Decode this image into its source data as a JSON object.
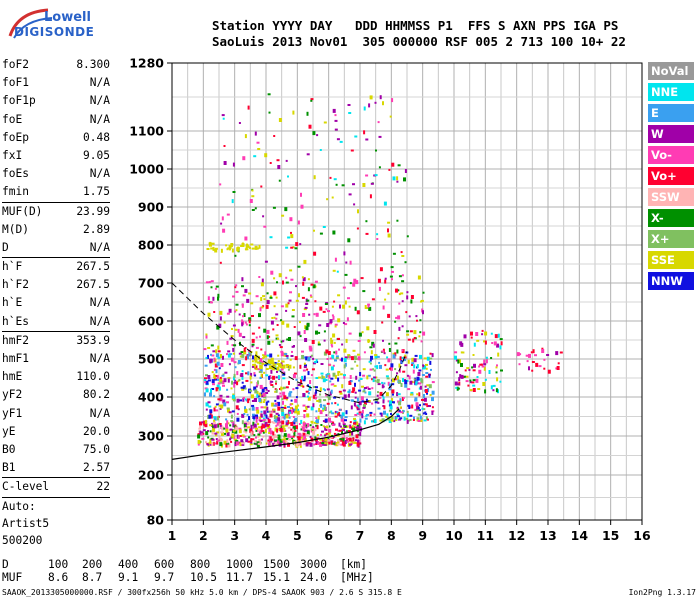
{
  "header": {
    "line1": "Station YYYY DAY   DDD HHMMSS P1  FFS S AXN PPS IGA PS",
    "line2": "SaoLuis 2013 Nov01  305 000000 RSF 005 2 713 100 10+ 22"
  },
  "logo": {
    "line1": "Lowell",
    "line2": "DIGISONDE"
  },
  "params": [
    {
      "name": "foF2",
      "value": "8.300"
    },
    {
      "name": "foF1",
      "value": "N/A"
    },
    {
      "name": "foF1p",
      "value": "N/A"
    },
    {
      "name": "foE",
      "value": "N/A"
    },
    {
      "name": "foEp",
      "value": "0.48"
    },
    {
      "name": "fxI",
      "value": "9.05"
    },
    {
      "name": "foEs",
      "value": "N/A"
    },
    {
      "name": "fmin",
      "value": "1.75"
    }
  ],
  "params2": [
    {
      "name": "MUF(D)",
      "value": "23.99"
    },
    {
      "name": "M(D)",
      "value": "2.89"
    },
    {
      "name": "D",
      "value": "N/A"
    }
  ],
  "params3": [
    {
      "name": "h`F",
      "value": "267.5"
    },
    {
      "name": "h`F2",
      "value": "267.5"
    },
    {
      "name": "h`E",
      "value": "N/A"
    },
    {
      "name": "h`Es",
      "value": "N/A"
    }
  ],
  "params4": [
    {
      "name": "hmF2",
      "value": "353.9"
    },
    {
      "name": "hmF1",
      "value": "N/A"
    },
    {
      "name": "hmE",
      "value": "110.0"
    },
    {
      "name": "yF2",
      "value": "80.2"
    },
    {
      "name": "yF1",
      "value": "N/A"
    },
    {
      "name": "yE",
      "value": "20.0"
    },
    {
      "name": "B0",
      "value": "75.0"
    },
    {
      "name": "B1",
      "value": "2.57"
    }
  ],
  "params5": [
    {
      "name": "C-level",
      "value": "22"
    }
  ],
  "auto": [
    "Auto:",
    "Artist5",
    "500200"
  ],
  "legend": [
    {
      "label": "NoVal",
      "color": "#999999",
      "text": "#ffffff"
    },
    {
      "label": "NNE",
      "color": "#00e5ee",
      "text": "#ffffff"
    },
    {
      "label": "E",
      "color": "#3aa0f0",
      "text": "#ffffff"
    },
    {
      "label": "W",
      "color": "#a000a8",
      "text": "#ffffff"
    },
    {
      "label": "Vo-",
      "color": "#ff3cb4",
      "text": "#ffffff"
    },
    {
      "label": "Vo+",
      "color": "#ff0030",
      "text": "#ffffff"
    },
    {
      "label": "SSW",
      "color": "#ffb4b4",
      "text": "#ffffff"
    },
    {
      "label": "X-",
      "color": "#009000",
      "text": "#ffffff"
    },
    {
      "label": "X+",
      "color": "#80c060",
      "text": "#ffffff"
    },
    {
      "label": "SSE",
      "color": "#d8d800",
      "text": "#ffffff"
    },
    {
      "label": "NNW",
      "color": "#1010e0",
      "text": "#ffffff"
    }
  ],
  "muf_table": {
    "d_label": "D",
    "d_values": [
      "100",
      "200",
      "400",
      "600",
      "800",
      "1000",
      "1500",
      "3000"
    ],
    "d_unit": "[km]",
    "muf_label": "MUF",
    "muf_values": [
      "8.6",
      "8.7",
      "9.1",
      "9.7",
      "10.5",
      "11.7",
      "15.1",
      "24.0"
    ],
    "muf_unit": "[MHz]"
  },
  "footer": {
    "left": "SAAOK_2013305000000.RSF / 300fx256h 50 kHz 5.0 km / DPS-4 SAAOK 903 / 2.6 S 315.8 E",
    "right": "Ion2Png 1.3.17"
  },
  "chart_data": {
    "type": "scatter",
    "xlabel": "",
    "ylabel": "",
    "x_ticks": [
      1,
      2,
      3,
      4,
      5,
      6,
      7,
      8,
      9,
      10,
      11,
      12,
      13,
      14,
      15,
      16
    ],
    "xlim": [
      1,
      16
    ],
    "y_ticks": [
      80,
      200,
      300,
      400,
      500,
      600,
      700,
      800,
      900,
      1000,
      1100,
      1280
    ],
    "y_tick_values": [
      80,
      200,
      300,
      400,
      500,
      600,
      700,
      800,
      900,
      1000,
      1100,
      1280
    ],
    "ylim": [
      80,
      1280
    ],
    "y_scale": "nonlinear (ionogram virtual height)",
    "grid": true,
    "clusters": [
      {
        "name": "F-trace",
        "x_range": [
          1.8,
          7.0
        ],
        "y_range": [
          280,
          340
        ],
        "colors": [
          "#ff0030",
          "#ff3cb4",
          "#009000",
          "#d8d800",
          "#a000a8",
          "#ffb4b4"
        ],
        "count": 520
      },
      {
        "name": "spread-F",
        "x_range": [
          2.0,
          9.3
        ],
        "y_range": [
          340,
          520
        ],
        "colors": [
          "#a000a8",
          "#ff3cb4",
          "#00e5ee",
          "#3aa0f0",
          "#d8d800",
          "#ff0030",
          "#80c060",
          "#1010e0"
        ],
        "count": 900
      },
      {
        "name": "high-echoes",
        "x_range": [
          2.0,
          9.0
        ],
        "y_range": [
          520,
          720
        ],
        "colors": [
          "#a000a8",
          "#ff0030",
          "#d8d800",
          "#ff3cb4",
          "#009000"
        ],
        "count": 330
      },
      {
        "name": "sparse-high",
        "x_range": [
          2.5,
          8.5
        ],
        "y_range": [
          720,
          1200
        ],
        "colors": [
          "#a000a8",
          "#ff3cb4",
          "#d8d800",
          "#00e5ee",
          "#ff0030",
          "#009000"
        ],
        "count": 160
      },
      {
        "name": "band-800",
        "x_range": [
          2.0,
          3.8
        ],
        "y_range": [
          790,
          810
        ],
        "colors": [
          "#d8d800"
        ],
        "count": 40
      },
      {
        "name": "band-500",
        "x_range": [
          3.5,
          4.8
        ],
        "y_range": [
          480,
          510
        ],
        "colors": [
          "#d8d800"
        ],
        "count": 40
      },
      {
        "name": "right-echoes",
        "x_range": [
          10.0,
          11.5
        ],
        "y_range": [
          420,
          580
        ],
        "colors": [
          "#ff0030",
          "#ff3cb4",
          "#00e5ee",
          "#a000a8",
          "#d8d800",
          "#009000"
        ],
        "count": 90
      },
      {
        "name": "far-right",
        "x_range": [
          12.0,
          13.5
        ],
        "y_range": [
          470,
          530
        ],
        "colors": [
          "#ff3cb4",
          "#ff0030",
          "#a000a8"
        ],
        "count": 25
      }
    ],
    "solid_profile": [
      [
        1,
        240
      ],
      [
        2,
        252
      ],
      [
        3,
        262
      ],
      [
        4,
        272
      ],
      [
        5,
        283
      ],
      [
        6,
        297
      ],
      [
        7,
        316
      ],
      [
        7.6,
        330
      ],
      [
        8.0,
        350
      ],
      [
        8.25,
        370
      ]
    ],
    "dashed_profile": [
      [
        1,
        700
      ],
      [
        2,
        620
      ],
      [
        3,
        550
      ],
      [
        4,
        490
      ],
      [
        5,
        440
      ],
      [
        6,
        405
      ],
      [
        7,
        385
      ],
      [
        7.6,
        395
      ],
      [
        8.0,
        430
      ],
      [
        8.25,
        470
      ],
      [
        8.5,
        520
      ]
    ]
  }
}
